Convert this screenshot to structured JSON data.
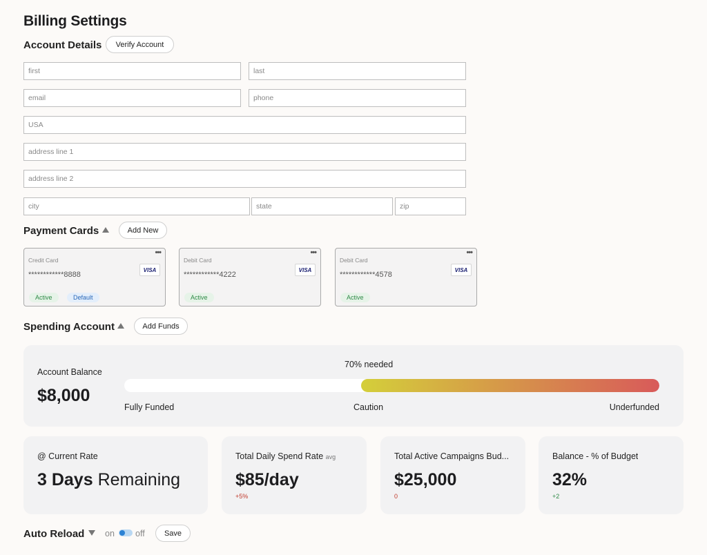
{
  "page_title": "Billing Settings",
  "account_details": {
    "title": "Account Details",
    "verify_label": "Verify Account",
    "fields": {
      "first": "first",
      "last": "last",
      "email": "email",
      "phone": "phone",
      "country": "USA",
      "address1": "address line 1",
      "address2": "address line 2",
      "city": "city",
      "state": "state",
      "zip": "zip"
    }
  },
  "payment_cards": {
    "title": "Payment Cards",
    "add_label": "Add New",
    "cards": [
      {
        "type": "Credit Card",
        "number": "************8888",
        "brand": "VISA",
        "menu": "•••",
        "status": "Active",
        "default": "Default"
      },
      {
        "type": "Debit Card",
        "number": "************4222",
        "brand": "VISA",
        "menu": "•••",
        "status": "Active"
      },
      {
        "type": "Debit Card",
        "number": "************4578",
        "brand": "VISA",
        "menu": "•••",
        "status": "Active"
      }
    ]
  },
  "spending_account": {
    "title": "Spending Account",
    "add_label": "Add Funds",
    "balance_label": "Account Balance",
    "balance_value": "$8,000",
    "needed_label": "70% needed",
    "needed_fraction": 0.7,
    "scale_labels": [
      "Fully Funded",
      "Caution",
      "Underfunded"
    ],
    "gradient": {
      "start": "#d4cf3a",
      "end": "#d85a5a",
      "track": "#ffffff"
    }
  },
  "stats": [
    {
      "label": "@ Current Rate",
      "value_bold": "3 Days",
      "value_rest": " Remaining",
      "delta": ""
    },
    {
      "label": "Total Daily Spend Rate",
      "label_suffix": "avg",
      "value_bold": "$85/day",
      "delta": "+5%",
      "delta_color": "#c0392b"
    },
    {
      "label": "Total Active Campaigns Bud...",
      "value_bold": "$25,000",
      "delta": "0",
      "delta_color": "#c0392b"
    },
    {
      "label": "Balance - % of Budget",
      "value_bold": "32%",
      "delta": "+2",
      "delta_color": "#2e8a46"
    }
  ],
  "auto_reload": {
    "title": "Auto Reload",
    "on_label": "on",
    "off_label": "off",
    "save_label": "Save"
  }
}
